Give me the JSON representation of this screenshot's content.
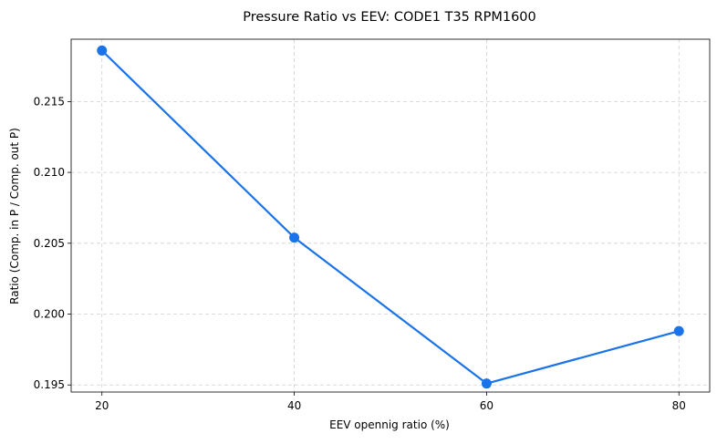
{
  "chart_data": {
    "type": "line",
    "title": "Pressure Ratio vs EEV: CODE1 T35 RPM1600",
    "xlabel": "EEV opennig ratio (%)",
    "ylabel": "Ratio (Comp. in P / Comp. out P)",
    "x": [
      20,
      40,
      60,
      80
    ],
    "series": [
      {
        "name": "Pressure Ratio",
        "values": [
          0.2186,
          0.2054,
          0.1951,
          0.1988
        ]
      }
    ],
    "xlim": [
      16.8,
      83.2
    ],
    "ylim": [
      0.1945,
      0.2194
    ],
    "xticks": [
      20,
      40,
      60,
      80
    ],
    "xtick_labels": [
      "20",
      "40",
      "60",
      "80"
    ],
    "yticks": [
      0.195,
      0.2,
      0.205,
      0.21,
      0.215
    ],
    "ytick_labels": [
      "0.195",
      "0.200",
      "0.205",
      "0.210",
      "0.215"
    ],
    "grid": true,
    "colors": {
      "line": "#1a73e8",
      "marker": "#1a73e8"
    }
  }
}
